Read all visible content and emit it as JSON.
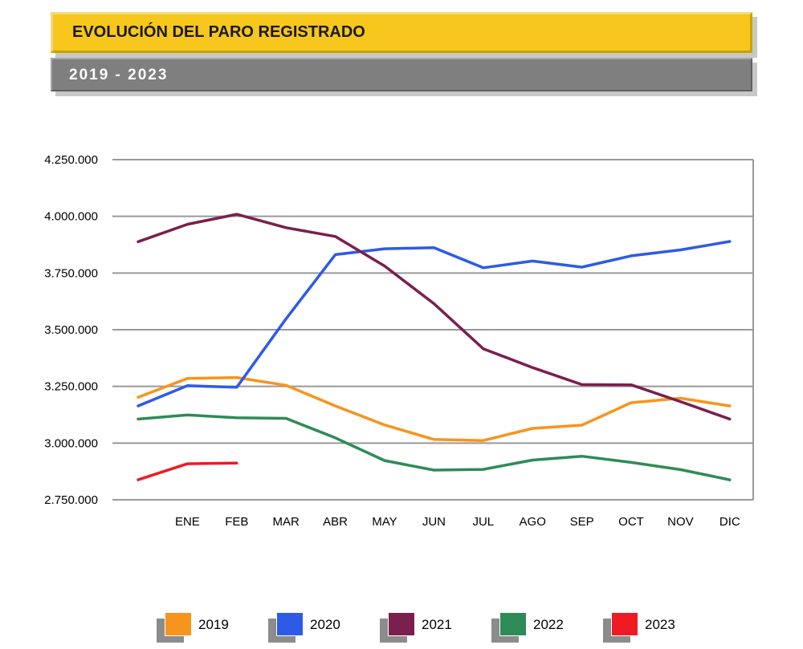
{
  "header": {
    "title": "EVOLUCIÓN DEL PARO REGISTRADO",
    "subtitle": "2019 - 2023"
  },
  "chart_data": {
    "type": "line",
    "title": "EVOLUCIÓN DEL PARO REGISTRADO",
    "subtitle": "2019 - 2023",
    "categories": [
      "",
      "ENE",
      "FEB",
      "MAR",
      "ABR",
      "MAY",
      "JUN",
      "JUL",
      "AGO",
      "SEP",
      "OCT",
      "NOV",
      "DIC"
    ],
    "yticks": [
      "4.250.000",
      "4.000.000",
      "3.750.000",
      "3.500.000",
      "3.250.000",
      "3.000.000",
      "2.750.000"
    ],
    "ylim": [
      2750000,
      4250000
    ],
    "grid": true,
    "legend_position": "bottom",
    "series": [
      {
        "name": "2019",
        "color": "#f7941d",
        "values": [
          3202000,
          3285000,
          3289000,
          3255000,
          3164000,
          3080000,
          3016000,
          3011000,
          3065000,
          3079000,
          3178000,
          3198000,
          3164000
        ]
      },
      {
        "name": "2020",
        "color": "#2e5be6",
        "values": [
          3164000,
          3253000,
          3246000,
          3548000,
          3831000,
          3857000,
          3862000,
          3773000,
          3803000,
          3776000,
          3826000,
          3852000,
          3889000
        ]
      },
      {
        "name": "2021",
        "color": "#7a1f4e",
        "values": [
          3888000,
          3965000,
          4009000,
          3950000,
          3911000,
          3781000,
          3615000,
          3416000,
          3333000,
          3258000,
          3257000,
          3183000,
          3106000
        ]
      },
      {
        "name": "2022",
        "color": "#2e8b57",
        "values": [
          3106000,
          3124000,
          3112000,
          3109000,
          3023000,
          2923000,
          2881000,
          2884000,
          2925000,
          2942000,
          2915000,
          2883000,
          2838000
        ]
      },
      {
        "name": "2023",
        "color": "#ee1b24",
        "values": [
          2838000,
          2909000,
          2912000,
          null,
          null,
          null,
          null,
          null,
          null,
          null,
          null,
          null,
          null
        ]
      }
    ]
  }
}
